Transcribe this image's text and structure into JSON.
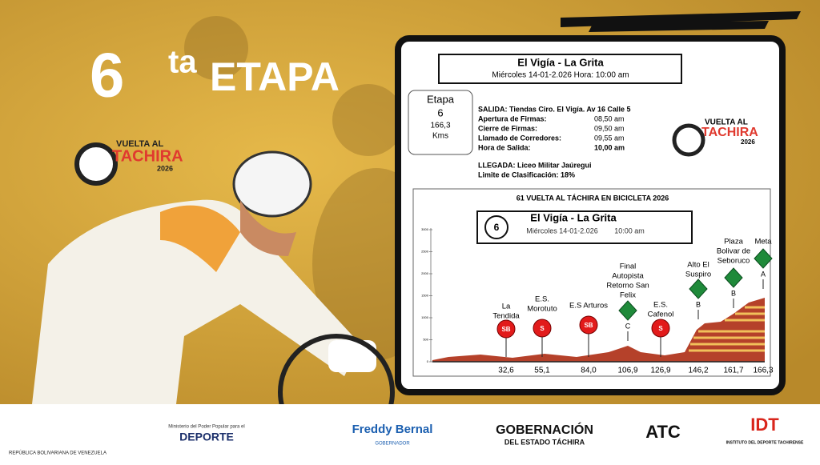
{
  "header": {
    "stage_number": "6",
    "stage_suffix": "ta",
    "stage_word": "ETAPA"
  },
  "logo": {
    "line1": "VUELTA AL",
    "line2": "TACHIRA",
    "year": "2026"
  },
  "card": {
    "title": "El Vigía - La Grita",
    "subtitle": "Miércoles 14-01-2.026   Hora: 10:00 am",
    "stage_box": [
      "Etapa",
      "6",
      "166,3",
      "Kms"
    ],
    "details": [
      "SALIDA: Tiendas Ciro. El Vigía. Av 16 Calle 5",
      "Apertura de Firmas:",
      "Cierre de Firmas:",
      "Llamado de Corredores:",
      "Hora de Salida:"
    ],
    "times": [
      "08,50 am",
      "09,50 am",
      "09,55 am",
      "10,00 am"
    ],
    "arrival": [
      "LLEGADA: Liceo Militar Jaúregui",
      "Limite de Clasificación:  18%"
    ]
  },
  "profile": {
    "heading": "61 VUELTA AL TÁCHIRA EN BICICLETA 2026",
    "stage": "6",
    "title": "El Vigía - La Grita",
    "date": "Miércoles 14-01-2.026",
    "time": "10:00 am",
    "yticks": [
      "3000",
      "2500",
      "2000",
      "1500",
      "1000",
      "500",
      "0"
    ],
    "points": [
      {
        "label": [
          "La",
          "Tendida"
        ],
        "badge": "SB",
        "km": "32,6"
      },
      {
        "label": [
          "E.S.",
          "Morotuto"
        ],
        "badge": "S",
        "km": "55,1"
      },
      {
        "label": [
          "E.S Arturos"
        ],
        "badge": "SB",
        "km": "84,0"
      },
      {
        "label": [
          "Final",
          "Autopista",
          "Retorno San",
          "Felix"
        ],
        "badge": "C",
        "km": "106,9"
      },
      {
        "label": [
          "E.S.",
          "Cafenol"
        ],
        "badge": "S",
        "km": "126,9"
      },
      {
        "label": [
          "Alto El",
          "Suspiro"
        ],
        "badge": "B",
        "km": "146,2"
      },
      {
        "label": [
          "Plaza",
          "Bolivar de",
          "Seboruco"
        ],
        "badge": "B",
        "km": "161,7"
      },
      {
        "label": [
          "Meta"
        ],
        "badge": "A",
        "km": "166,3"
      }
    ]
  },
  "footer": [
    "REPÚBLICA BOLIVARIANA DE VENEZUELA",
    "Ministerio del Poder Popular para el",
    "DEPORTE",
    "Freddy Bernal",
    "GOBERNADOR",
    "GOBERNACIÓN",
    "DEL ESTADO TÁCHIRA",
    "ATC",
    "IDT",
    "INSTITUTO DEL DEPORTE TACHIRENSE"
  ]
}
